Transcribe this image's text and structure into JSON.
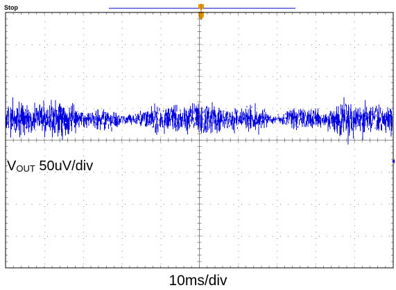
{
  "scope": {
    "run_status": "Stop",
    "grid": {
      "h_divisions": 10,
      "v_divisions": 8
    },
    "colors": {
      "trace": "#0000e0",
      "trigger_marker": "#e89a00",
      "grid": "#808080",
      "border": "#000000",
      "background": "#ffffff",
      "record_bar": "#0000cc"
    }
  },
  "channel": {
    "name_main": "V",
    "name_sub": "OUT",
    "scale": "50uV/div"
  },
  "timebase": {
    "label": "10ms/div"
  },
  "icons": {
    "trigger_marker": "trigger-position-icon",
    "ground_marker": "channel-offset-arrow-icon"
  }
}
